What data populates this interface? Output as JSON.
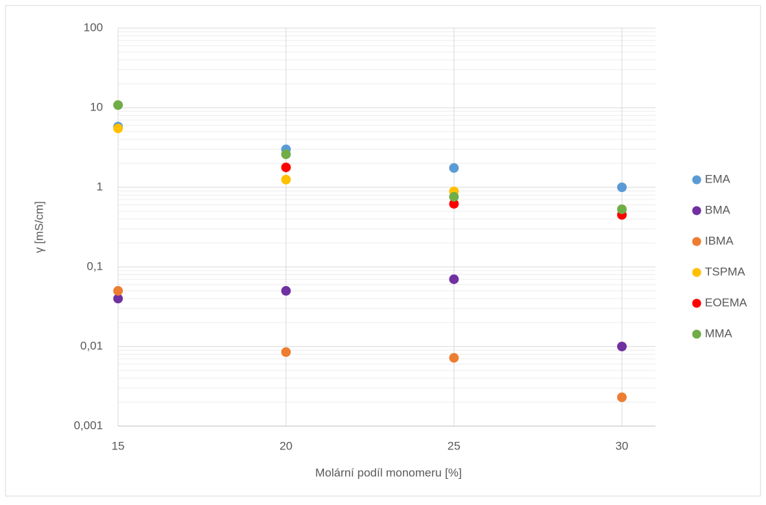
{
  "chart_data": {
    "type": "scatter",
    "x_label": "Molární podíl monomeru [%]",
    "y_label": "γ [mS/cm]",
    "x": [
      15,
      20,
      25,
      30
    ],
    "xlim": [
      15,
      31
    ],
    "xticks": [
      15,
      20,
      25,
      30
    ],
    "ylim": [
      0.001,
      100
    ],
    "log_y": true,
    "grid": true,
    "legend": "right",
    "yticks": [
      {
        "value": 0.001,
        "label": "0,001"
      },
      {
        "value": 0.01,
        "label": "0,01"
      },
      {
        "value": 0.1,
        "label": "0,1"
      },
      1,
      10,
      100
    ],
    "series": [
      {
        "name": "EMA",
        "color": "#5b9bd5",
        "values": [
          5.8,
          3.0,
          1.75,
          1.0
        ]
      },
      {
        "name": "BMA",
        "color": "#7030a0",
        "values": [
          0.04,
          0.05,
          0.07,
          0.01
        ]
      },
      {
        "name": "IBMA",
        "color": "#ed7d31",
        "values": [
          0.05,
          0.0085,
          0.0072,
          0.0023
        ]
      },
      {
        "name": "TSPMA",
        "color": "#ffc000",
        "values": [
          5.5,
          1.25,
          0.89,
          null
        ]
      },
      {
        "name": "EOEMA",
        "color": "#ff0000",
        "values": [
          null,
          1.78,
          0.62,
          0.45
        ]
      },
      {
        "name": "MMA",
        "color": "#70ad47",
        "values": [
          10.8,
          2.6,
          0.76,
          0.53
        ]
      }
    ]
  }
}
